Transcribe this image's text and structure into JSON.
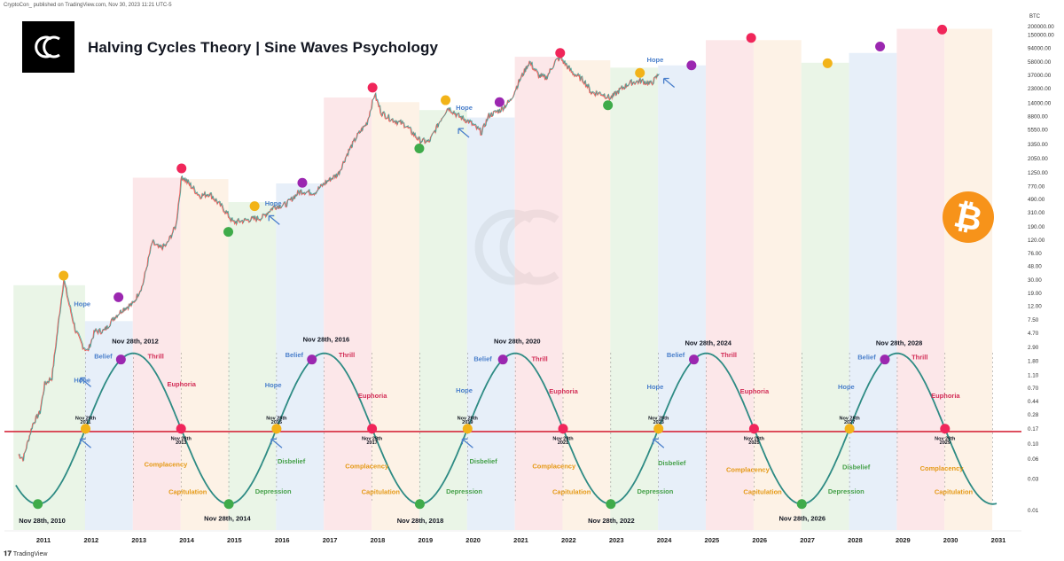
{
  "header": {
    "published_line": "CryptoCon_ published on TradingView.com, Nov 30, 2023 11:21 UTC-5",
    "title": "Halving Cycles Theory | Sine Waves Psychology",
    "currency": "BTC"
  },
  "footer": {
    "brand": "TradingView"
  },
  "colors": {
    "price_up": "#26a69a",
    "price_down": "#ef5350",
    "sine_wave": "#2e8b84",
    "threshold_line": "#d62a3d",
    "top_dot": "#f0265a",
    "belief_dot": "#9b27b0",
    "complacency_dot": "#f2b318",
    "bottom_dot": "#3fab4a",
    "bitcoin": "#f7931a",
    "zone_green": "#e6f3e3",
    "zone_blue": "#e3ecf8",
    "zone_red": "#fbe3e5",
    "zone_orange": "#fdf0e2"
  },
  "chart_data": {
    "type": "line",
    "title": "Halving Cycles Theory | Sine Waves Psychology",
    "y_scale": "log",
    "ylim": [
      0.01,
      200000
    ],
    "x_range": [
      2010.45,
      2031.3
    ],
    "x_tick_labels": [
      "2011",
      "2012",
      "2013",
      "2014",
      "2015",
      "2016",
      "2017",
      "2018",
      "2019",
      "2020",
      "2021",
      "2022",
      "2023",
      "2024",
      "2025",
      "2026",
      "2027",
      "2028",
      "2029",
      "2030",
      "2031"
    ],
    "y_tick_labels": [
      "200000.00",
      "150000.00",
      "94000.00",
      "58000.00",
      "37000.00",
      "23000.00",
      "14000.00",
      "8800.00",
      "5550.00",
      "3350.00",
      "2050.00",
      "1250.00",
      "770.00",
      "490.00",
      "310.00",
      "190.00",
      "120.00",
      "76.00",
      "48.00",
      "30.00",
      "19.00",
      "12.00",
      "7.50",
      "4.70",
      "2.90",
      "1.80",
      "1.10",
      "0.70",
      "0.44",
      "0.28",
      "0.17",
      "0.10",
      "0.06",
      "0.03",
      "0.01"
    ],
    "threshold_value": 0.155,
    "price_series": [
      {
        "x": 2010.5,
        "y": 0.07
      },
      {
        "x": 2010.6,
        "y": 0.06
      },
      {
        "x": 2010.8,
        "y": 0.2
      },
      {
        "x": 2010.95,
        "y": 0.3
      },
      {
        "x": 2011.05,
        "y": 0.8
      },
      {
        "x": 2011.2,
        "y": 1.0
      },
      {
        "x": 2011.35,
        "y": 8
      },
      {
        "x": 2011.45,
        "y": 30
      },
      {
        "x": 2011.55,
        "y": 14
      },
      {
        "x": 2011.7,
        "y": 5
      },
      {
        "x": 2011.85,
        "y": 3
      },
      {
        "x": 2011.95,
        "y": 2.5
      },
      {
        "x": 2012.1,
        "y": 5
      },
      {
        "x": 2012.3,
        "y": 5.1
      },
      {
        "x": 2012.5,
        "y": 8
      },
      {
        "x": 2012.7,
        "y": 11
      },
      {
        "x": 2012.9,
        "y": 13
      },
      {
        "x": 2013.1,
        "y": 25
      },
      {
        "x": 2013.3,
        "y": 110
      },
      {
        "x": 2013.45,
        "y": 90
      },
      {
        "x": 2013.6,
        "y": 100
      },
      {
        "x": 2013.8,
        "y": 200
      },
      {
        "x": 2013.92,
        "y": 1100
      },
      {
        "x": 2014.1,
        "y": 800
      },
      {
        "x": 2014.3,
        "y": 550
      },
      {
        "x": 2014.5,
        "y": 600
      },
      {
        "x": 2014.8,
        "y": 350
      },
      {
        "x": 2015.0,
        "y": 220
      },
      {
        "x": 2015.3,
        "y": 240
      },
      {
        "x": 2015.6,
        "y": 260
      },
      {
        "x": 2015.85,
        "y": 380
      },
      {
        "x": 2016.1,
        "y": 410
      },
      {
        "x": 2016.4,
        "y": 650
      },
      {
        "x": 2016.7,
        "y": 620
      },
      {
        "x": 2016.95,
        "y": 900
      },
      {
        "x": 2017.2,
        "y": 1200
      },
      {
        "x": 2017.4,
        "y": 2500
      },
      {
        "x": 2017.6,
        "y": 4500
      },
      {
        "x": 2017.8,
        "y": 7000
      },
      {
        "x": 2017.96,
        "y": 19000
      },
      {
        "x": 2018.1,
        "y": 10000
      },
      {
        "x": 2018.3,
        "y": 8000
      },
      {
        "x": 2018.6,
        "y": 6500
      },
      {
        "x": 2018.9,
        "y": 3800
      },
      {
        "x": 2019.1,
        "y": 3600
      },
      {
        "x": 2019.35,
        "y": 8000
      },
      {
        "x": 2019.5,
        "y": 12000
      },
      {
        "x": 2019.7,
        "y": 9000
      },
      {
        "x": 2019.95,
        "y": 7200
      },
      {
        "x": 2020.2,
        "y": 5000
      },
      {
        "x": 2020.35,
        "y": 9000
      },
      {
        "x": 2020.6,
        "y": 11000
      },
      {
        "x": 2020.8,
        "y": 15000
      },
      {
        "x": 2020.98,
        "y": 29000
      },
      {
        "x": 2021.2,
        "y": 58000
      },
      {
        "x": 2021.4,
        "y": 36000
      },
      {
        "x": 2021.55,
        "y": 33000
      },
      {
        "x": 2021.75,
        "y": 60000
      },
      {
        "x": 2021.85,
        "y": 67000
      },
      {
        "x": 2022.1,
        "y": 40000
      },
      {
        "x": 2022.35,
        "y": 30000
      },
      {
        "x": 2022.5,
        "y": 20000
      },
      {
        "x": 2022.7,
        "y": 19500
      },
      {
        "x": 2022.9,
        "y": 16500
      },
      {
        "x": 2023.1,
        "y": 22000
      },
      {
        "x": 2023.3,
        "y": 28000
      },
      {
        "x": 2023.55,
        "y": 30000
      },
      {
        "x": 2023.75,
        "y": 27000
      },
      {
        "x": 2023.91,
        "y": 37800
      }
    ],
    "sine_wave": {
      "low_value": 0.0125,
      "high_value": 2.35,
      "trough_x": 2010.91,
      "period_years": 4.0,
      "x_end": 2031.0
    },
    "zones": [
      {
        "type": "green",
        "x0": 2010.4,
        "x1": 2011.9,
        "y_top": 25
      },
      {
        "type": "blue",
        "x0": 2011.9,
        "x1": 2012.9,
        "y_top": 7.2
      },
      {
        "type": "red",
        "x0": 2012.9,
        "x1": 2013.9,
        "y_top": 1050
      },
      {
        "type": "orange",
        "x0": 2013.9,
        "x1": 2014.9,
        "y_top": 1000
      },
      {
        "type": "green",
        "x0": 2014.9,
        "x1": 2015.9,
        "y_top": 450
      },
      {
        "type": "blue",
        "x0": 2015.9,
        "x1": 2016.9,
        "y_top": 860
      },
      {
        "type": "red",
        "x0": 2016.9,
        "x1": 2017.9,
        "y_top": 17000
      },
      {
        "type": "orange",
        "x0": 2017.9,
        "x1": 2018.9,
        "y_top": 14500
      },
      {
        "type": "green",
        "x0": 2018.9,
        "x1": 2019.9,
        "y_top": 11000
      },
      {
        "type": "blue",
        "x0": 2019.9,
        "x1": 2020.9,
        "y_top": 8500
      },
      {
        "type": "red",
        "x0": 2020.9,
        "x1": 2021.9,
        "y_top": 70000
      },
      {
        "type": "orange",
        "x0": 2021.9,
        "x1": 2022.9,
        "y_top": 62000
      },
      {
        "type": "green",
        "x0": 2022.9,
        "x1": 2023.9,
        "y_top": 48000
      },
      {
        "type": "blue",
        "x0": 2023.9,
        "x1": 2024.9,
        "y_top": 52000
      },
      {
        "type": "red",
        "x0": 2024.9,
        "x1": 2025.9,
        "y_top": 125000
      },
      {
        "type": "orange",
        "x0": 2025.9,
        "x1": 2026.9,
        "y_top": 125000
      },
      {
        "type": "green",
        "x0": 2026.9,
        "x1": 2027.9,
        "y_top": 57000
      },
      {
        "type": "blue",
        "x0": 2027.9,
        "x1": 2028.9,
        "y_top": 80000
      },
      {
        "type": "red",
        "x0": 2028.9,
        "x1": 2029.9,
        "y_top": 185000
      },
      {
        "type": "orange",
        "x0": 2029.9,
        "x1": 2030.9,
        "y_top": 185000
      }
    ],
    "price_dots": [
      {
        "x": 2011.45,
        "y": 35,
        "kind": "complacency"
      },
      {
        "x": 2012.6,
        "y": 16.5,
        "kind": "belief"
      },
      {
        "x": 2013.92,
        "y": 1450,
        "kind": "top"
      },
      {
        "x": 2014.9,
        "y": 160,
        "kind": "bottom"
      },
      {
        "x": 2015.45,
        "y": 390,
        "kind": "complacency"
      },
      {
        "x": 2016.45,
        "y": 880,
        "kind": "belief"
      },
      {
        "x": 2017.92,
        "y": 24000,
        "kind": "top"
      },
      {
        "x": 2018.9,
        "y": 2900,
        "kind": "bottom"
      },
      {
        "x": 2019.45,
        "y": 15500,
        "kind": "complacency"
      },
      {
        "x": 2020.58,
        "y": 14500,
        "kind": "belief"
      },
      {
        "x": 2021.85,
        "y": 80000,
        "kind": "top"
      },
      {
        "x": 2022.85,
        "y": 13000,
        "kind": "bottom"
      },
      {
        "x": 2023.52,
        "y": 40000,
        "kind": "complacency"
      },
      {
        "x": 2024.6,
        "y": 52000,
        "kind": "belief"
      },
      {
        "x": 2025.85,
        "y": 135000,
        "kind": "top"
      },
      {
        "x": 2027.45,
        "y": 56000,
        "kind": "complacency"
      },
      {
        "x": 2028.55,
        "y": 100000,
        "kind": "belief"
      },
      {
        "x": 2029.85,
        "y": 180000,
        "kind": "top"
      }
    ],
    "wave_dots": [
      {
        "x": 2010.91,
        "kind": "bottom"
      },
      {
        "x": 2011.91,
        "kind": "complacency"
      },
      {
        "x": 2012.65,
        "kind": "belief"
      },
      {
        "x": 2013.91,
        "kind": "top"
      },
      {
        "x": 2014.91,
        "kind": "bottom"
      },
      {
        "x": 2015.91,
        "kind": "complacency"
      },
      {
        "x": 2016.65,
        "kind": "belief"
      },
      {
        "x": 2017.91,
        "kind": "top"
      },
      {
        "x": 2018.91,
        "kind": "bottom"
      },
      {
        "x": 2019.91,
        "kind": "complacency"
      },
      {
        "x": 2020.65,
        "kind": "belief"
      },
      {
        "x": 2021.91,
        "kind": "top"
      },
      {
        "x": 2022.91,
        "kind": "bottom"
      },
      {
        "x": 2023.91,
        "kind": "complacency"
      },
      {
        "x": 2024.65,
        "kind": "belief"
      },
      {
        "x": 2025.91,
        "kind": "top"
      },
      {
        "x": 2026.91,
        "kind": "bottom"
      },
      {
        "x": 2027.91,
        "kind": "complacency"
      },
      {
        "x": 2028.65,
        "kind": "belief"
      },
      {
        "x": 2029.91,
        "kind": "top"
      }
    ],
    "annotations": [
      {
        "text": "Nov 28th, 2010",
        "x": 2011.0,
        "y": 0.0065,
        "kind": "date"
      },
      {
        "text": "Nov 28th, 2012",
        "x": 2012.95,
        "y": 3.3,
        "kind": "date"
      },
      {
        "text": "Nov 28th, 2014",
        "x": 2014.88,
        "y": 0.007,
        "kind": "date"
      },
      {
        "text": "Nov 28th, 2016",
        "x": 2016.95,
        "y": 3.5,
        "kind": "date"
      },
      {
        "text": "Nov 28th, 2018",
        "x": 2018.92,
        "y": 0.0065,
        "kind": "date"
      },
      {
        "text": "Nov 28th, 2020",
        "x": 2020.95,
        "y": 3.3,
        "kind": "date"
      },
      {
        "text": "Nov 28th, 2022",
        "x": 2022.92,
        "y": 0.0065,
        "kind": "date"
      },
      {
        "text": "Nov 28th, 2024",
        "x": 2024.95,
        "y": 3.1,
        "kind": "date"
      },
      {
        "text": "Nov 28th, 2026",
        "x": 2026.92,
        "y": 0.007,
        "kind": "date"
      },
      {
        "text": "Nov 28th, 2028",
        "x": 2028.95,
        "y": 3.1,
        "kind": "date"
      },
      {
        "text": "Nov 28th",
        "x": 2011.91,
        "y": 0.235,
        "kind": "small"
      },
      {
        "text": "2011",
        "x": 2011.91,
        "y": 0.205,
        "kind": "small"
      },
      {
        "text": "Nov 28th",
        "x": 2013.91,
        "y": 0.115,
        "kind": "small"
      },
      {
        "text": "2013",
        "x": 2013.91,
        "y": 0.101,
        "kind": "small"
      },
      {
        "text": "Nov 28th",
        "x": 2015.91,
        "y": 0.235,
        "kind": "small"
      },
      {
        "text": "2015",
        "x": 2015.91,
        "y": 0.205,
        "kind": "small"
      },
      {
        "text": "Nov 28th",
        "x": 2017.91,
        "y": 0.115,
        "kind": "small"
      },
      {
        "text": "2017",
        "x": 2017.91,
        "y": 0.101,
        "kind": "small"
      },
      {
        "text": "Nov 28th",
        "x": 2019.91,
        "y": 0.235,
        "kind": "small"
      },
      {
        "text": "2019",
        "x": 2019.91,
        "y": 0.205,
        "kind": "small"
      },
      {
        "text": "Nov 28th",
        "x": 2021.91,
        "y": 0.115,
        "kind": "small"
      },
      {
        "text": "2021",
        "x": 2021.91,
        "y": 0.101,
        "kind": "small"
      },
      {
        "text": "Nov 28th",
        "x": 2023.91,
        "y": 0.235,
        "kind": "small"
      },
      {
        "text": "2023",
        "x": 2023.91,
        "y": 0.205,
        "kind": "small"
      },
      {
        "text": "Nov 28th",
        "x": 2025.91,
        "y": 0.115,
        "kind": "small"
      },
      {
        "text": "2025",
        "x": 2025.91,
        "y": 0.101,
        "kind": "small"
      },
      {
        "text": "Nov 28th",
        "x": 2027.91,
        "y": 0.235,
        "kind": "small"
      },
      {
        "text": "2027",
        "x": 2027.91,
        "y": 0.205,
        "kind": "small"
      },
      {
        "text": "Nov 28th",
        "x": 2029.91,
        "y": 0.115,
        "kind": "small"
      },
      {
        "text": "2029",
        "x": 2029.91,
        "y": 0.101,
        "kind": "small"
      },
      {
        "text": "Hope",
        "x": 2011.84,
        "y": 0.86,
        "kind": "hope"
      },
      {
        "text": "Belief",
        "x": 2012.28,
        "y": 1.95,
        "kind": "hope"
      },
      {
        "text": "Thrill",
        "x": 2013.38,
        "y": 1.95,
        "kind": "thrill"
      },
      {
        "text": "Euphoria",
        "x": 2013.92,
        "y": 0.74,
        "kind": "thrill"
      },
      {
        "text": "Complacency",
        "x": 2013.59,
        "y": 0.046,
        "kind": "complacency"
      },
      {
        "text": "Capitulation",
        "x": 2014.05,
        "y": 0.0178,
        "kind": "complacency"
      },
      {
        "text": "Hope",
        "x": 2015.84,
        "y": 0.72,
        "kind": "hope"
      },
      {
        "text": "Belief",
        "x": 2016.28,
        "y": 2.05,
        "kind": "hope"
      },
      {
        "text": "Thrill",
        "x": 2017.38,
        "y": 2.05,
        "kind": "thrill"
      },
      {
        "text": "Euphoria",
        "x": 2017.92,
        "y": 0.5,
        "kind": "thrill"
      },
      {
        "text": "Disbelief",
        "x": 2016.22,
        "y": 0.051,
        "kind": "disbelief"
      },
      {
        "text": "Depression",
        "x": 2015.84,
        "y": 0.018,
        "kind": "disbelief"
      },
      {
        "text": "Complacency",
        "x": 2017.8,
        "y": 0.043,
        "kind": "complacency"
      },
      {
        "text": "Capitulation",
        "x": 2018.09,
        "y": 0.0178,
        "kind": "complacency"
      },
      {
        "text": "Hope",
        "x": 2019.84,
        "y": 0.6,
        "kind": "hope"
      },
      {
        "text": "Belief",
        "x": 2020.23,
        "y": 1.8,
        "kind": "hope"
      },
      {
        "text": "Thrill",
        "x": 2021.42,
        "y": 1.8,
        "kind": "thrill"
      },
      {
        "text": "Euphoria",
        "x": 2021.92,
        "y": 0.58,
        "kind": "thrill"
      },
      {
        "text": "Disbelief",
        "x": 2020.24,
        "y": 0.051,
        "kind": "disbelief"
      },
      {
        "text": "Depression",
        "x": 2019.84,
        "y": 0.018,
        "kind": "disbelief"
      },
      {
        "text": "Complacency",
        "x": 2021.72,
        "y": 0.043,
        "kind": "complacency"
      },
      {
        "text": "Capitulation",
        "x": 2022.09,
        "y": 0.0178,
        "kind": "complacency"
      },
      {
        "text": "Hope",
        "x": 2023.84,
        "y": 0.68,
        "kind": "hope"
      },
      {
        "text": "Belief",
        "x": 2024.27,
        "y": 2.05,
        "kind": "hope"
      },
      {
        "text": "Thrill",
        "x": 2025.38,
        "y": 2.05,
        "kind": "thrill"
      },
      {
        "text": "Euphoria",
        "x": 2025.92,
        "y": 0.58,
        "kind": "thrill"
      },
      {
        "text": "Disbelief",
        "x": 2024.19,
        "y": 0.048,
        "kind": "disbelief"
      },
      {
        "text": "Depression",
        "x": 2023.84,
        "y": 0.018,
        "kind": "disbelief"
      },
      {
        "text": "Complacency",
        "x": 2025.78,
        "y": 0.038,
        "kind": "complacency"
      },
      {
        "text": "Capitulation",
        "x": 2026.09,
        "y": 0.0178,
        "kind": "complacency"
      },
      {
        "text": "Hope",
        "x": 2027.84,
        "y": 0.68,
        "kind": "hope"
      },
      {
        "text": "Belief",
        "x": 2028.27,
        "y": 1.9,
        "kind": "hope"
      },
      {
        "text": "Thrill",
        "x": 2029.38,
        "y": 1.9,
        "kind": "thrill"
      },
      {
        "text": "Euphoria",
        "x": 2029.92,
        "y": 0.5,
        "kind": "thrill"
      },
      {
        "text": "Disbelief",
        "x": 2028.05,
        "y": 0.042,
        "kind": "disbelief"
      },
      {
        "text": "Depression",
        "x": 2027.84,
        "y": 0.018,
        "kind": "disbelief"
      },
      {
        "text": "Complacency",
        "x": 2029.84,
        "y": 0.04,
        "kind": "complacency"
      },
      {
        "text": "Capitulation",
        "x": 2030.09,
        "y": 0.0178,
        "kind": "complacency"
      },
      {
        "text": "Hope",
        "x": 2011.84,
        "y": 12,
        "kind": "hope"
      },
      {
        "text": "Hope",
        "x": 2015.84,
        "y": 400,
        "kind": "hope"
      },
      {
        "text": "Hope",
        "x": 2019.84,
        "y": 11000,
        "kind": "hope"
      },
      {
        "text": "Hope",
        "x": 2023.84,
        "y": 58000,
        "kind": "hope"
      }
    ],
    "arrows": [
      {
        "x": 2011.8,
        "y": 1.0
      },
      {
        "x": 2011.8,
        "y": 0.12
      },
      {
        "x": 2015.8,
        "y": 0.12
      },
      {
        "x": 2019.8,
        "y": 0.12
      },
      {
        "x": 2023.8,
        "y": 0.12
      },
      {
        "x": 2015.75,
        "y": 280
      },
      {
        "x": 2019.72,
        "y": 5800
      },
      {
        "x": 2024.02,
        "y": 33000
      }
    ]
  }
}
